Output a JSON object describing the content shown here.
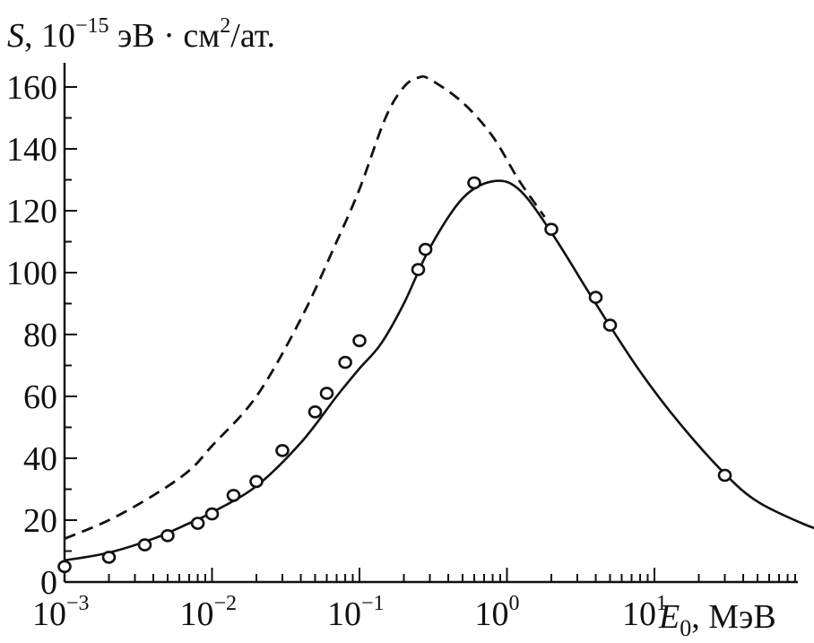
{
  "chart_data": {
    "type": "line",
    "ylabel_parts": {
      "symbol": "S",
      "sep": ", ",
      "base": "10",
      "exponent": "−15",
      "unit_before_sup": " эВ · см",
      "unit_sup": "2",
      "unit_after_sup": "/ат."
    },
    "xlabel_parts": {
      "symbol": "E",
      "subscript": "0",
      "unit": ", МэВ"
    },
    "x_scale": "log",
    "xlim": [
      0.001,
      250
    ],
    "ylim": [
      0,
      170
    ],
    "grid": false,
    "x_ticks": [
      {
        "value": 0.001,
        "base": "10",
        "exp": "−3"
      },
      {
        "value": 0.01,
        "base": "10",
        "exp": "−2"
      },
      {
        "value": 0.1,
        "base": "10",
        "exp": "−1"
      },
      {
        "value": 1,
        "base": "10",
        "exp": "0"
      },
      {
        "value": 10,
        "base": "10",
        "exp": "1"
      }
    ],
    "y_ticks": [
      {
        "value": 0,
        "label": "0"
      },
      {
        "value": 20,
        "label": "20"
      },
      {
        "value": 40,
        "label": "40"
      },
      {
        "value": 60,
        "label": "60"
      },
      {
        "value": 80,
        "label": "80"
      },
      {
        "value": 100,
        "label": "100"
      },
      {
        "value": 120,
        "label": "120"
      },
      {
        "value": 140,
        "label": "140"
      },
      {
        "value": 160,
        "label": "160"
      }
    ],
    "series": [
      {
        "style": "solid",
        "x": [
          0.001,
          0.002,
          0.004,
          0.007,
          0.01,
          0.02,
          0.04,
          0.07,
          0.1,
          0.14,
          0.2,
          0.3,
          0.5,
          0.8,
          1.2,
          2,
          4,
          8,
          15,
          30,
          50,
          100,
          170
        ],
        "y": [
          7,
          9.5,
          14,
          19,
          22.5,
          31,
          45,
          60,
          69,
          77,
          90,
          108,
          124,
          129.5,
          127,
          113,
          90,
          68,
          51,
          35,
          26,
          19,
          15
        ]
      },
      {
        "style": "dashed",
        "x": [
          0.001,
          0.002,
          0.004,
          0.007,
          0.01,
          0.02,
          0.04,
          0.07,
          0.1,
          0.15,
          0.2,
          0.25,
          0.3,
          0.5,
          0.8,
          1.2,
          1.8
        ],
        "y": [
          14,
          20,
          28,
          36,
          44,
          60,
          85,
          110,
          127,
          150,
          160,
          163,
          162.5,
          155,
          144,
          130,
          118
        ]
      },
      {
        "style": "markers",
        "x": [
          0.001,
          0.002,
          0.0035,
          0.005,
          0.008,
          0.01,
          0.014,
          0.02,
          0.03,
          0.05,
          0.06,
          0.08,
          0.1,
          0.25,
          0.28,
          0.6,
          2,
          4,
          5,
          30
        ],
        "y": [
          5,
          8,
          12,
          15,
          19,
          22,
          28,
          32.5,
          42.5,
          55,
          61,
          71,
          78,
          101,
          107.5,
          129,
          114,
          92,
          83,
          34.5
        ]
      }
    ]
  }
}
